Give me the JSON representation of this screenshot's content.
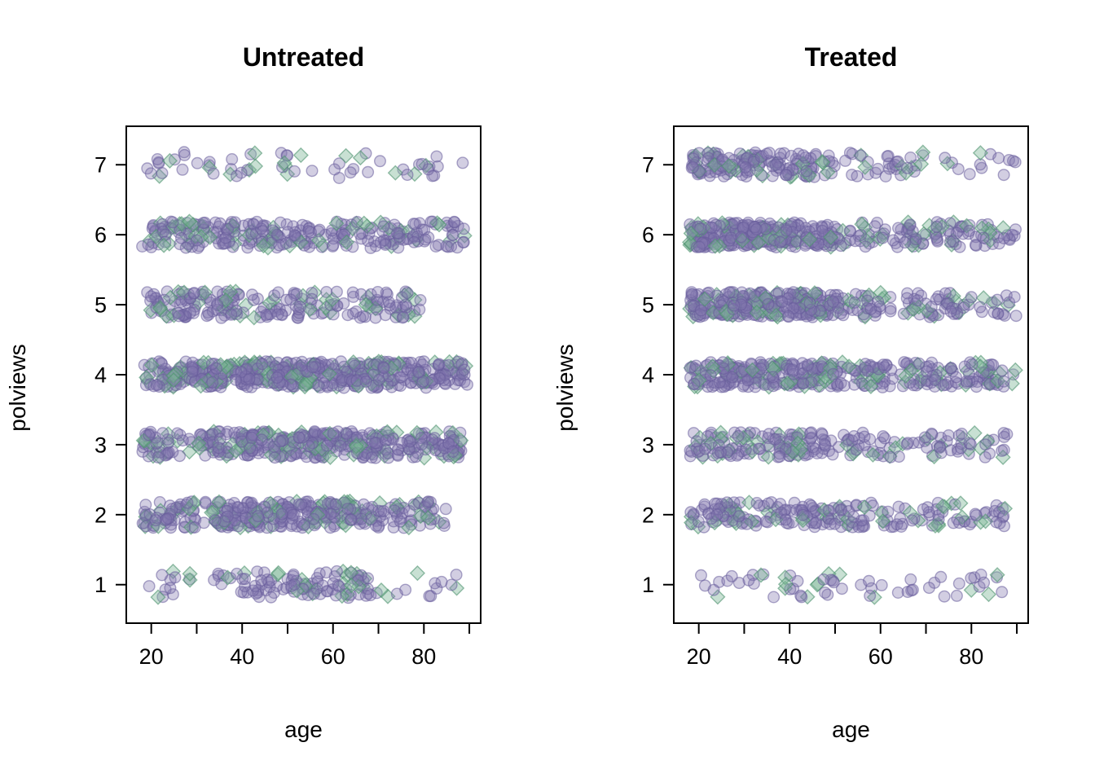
{
  "chart_data": [
    {
      "type": "scatter",
      "title": "Untreated",
      "xlabel": "age",
      "ylabel": "polviews",
      "xlim": [
        14.5,
        92.5
      ],
      "ylim": [
        0.45,
        7.55
      ],
      "x_ticks": [
        20,
        40,
        60,
        80
      ],
      "x_minor_ticks": [
        30,
        50,
        70,
        90
      ],
      "y_ticks": [
        1,
        2,
        3,
        4,
        5,
        6,
        7
      ],
      "grid": false,
      "legend": "none",
      "jitter": 0.19,
      "seed": 42,
      "series": [
        {
          "name": "circle-points",
          "marker": "circle",
          "fill": "#8177AF",
          "stroke": "#675C9C",
          "opacity": 0.36
        },
        {
          "name": "diamond-points",
          "marker": "diamond",
          "fill": "#7DB697",
          "stroke": "#4F936F",
          "opacity": 0.42
        }
      ],
      "levels": [
        {
          "y": 7,
          "counts": {
            "circle": 45,
            "diamond": 16
          },
          "clusters": [
            {
              "range": [
                18,
                89
              ],
              "w": 1.0
            }
          ]
        },
        {
          "y": 6,
          "counts": {
            "circle": 230,
            "diamond": 55
          },
          "clusters": [
            {
              "range": [
                18,
                89
              ],
              "w": 0.8
            },
            {
              "range": [
                20,
                55
              ],
              "w": 0.2
            }
          ]
        },
        {
          "y": 5,
          "counts": {
            "circle": 175,
            "diamond": 40
          },
          "clusters": [
            {
              "range": [
                18,
                80
              ],
              "w": 0.85
            },
            {
              "range": [
                20,
                50
              ],
              "w": 0.15
            }
          ]
        },
        {
          "y": 4,
          "counts": {
            "circle": 430,
            "diamond": 110
          },
          "clusters": [
            {
              "range": [
                18,
                90
              ],
              "w": 0.8
            },
            {
              "range": [
                30,
                75
              ],
              "w": 0.2
            }
          ]
        },
        {
          "y": 3,
          "counts": {
            "circle": 330,
            "diamond": 85
          },
          "clusters": [
            {
              "range": [
                18,
                89
              ],
              "w": 0.75
            },
            {
              "range": [
                40,
                70
              ],
              "w": 0.25
            }
          ]
        },
        {
          "y": 2,
          "counts": {
            "circle": 300,
            "diamond": 70
          },
          "clusters": [
            {
              "range": [
                18,
                85
              ],
              "w": 0.7
            },
            {
              "range": [
                35,
                65
              ],
              "w": 0.3
            }
          ]
        },
        {
          "y": 1,
          "counts": {
            "circle": 105,
            "diamond": 28
          },
          "clusters": [
            {
              "range": [
                18,
                89
              ],
              "w": 0.45
            },
            {
              "range": [
                40,
                68
              ],
              "w": 0.55
            }
          ]
        }
      ]
    },
    {
      "type": "scatter",
      "title": "Treated",
      "xlabel": "age",
      "ylabel": "polviews",
      "xlim": [
        14.5,
        92.5
      ],
      "ylim": [
        0.45,
        7.55
      ],
      "x_ticks": [
        20,
        40,
        60,
        80
      ],
      "x_minor_ticks": [
        30,
        50,
        70,
        90
      ],
      "y_ticks": [
        1,
        2,
        3,
        4,
        5,
        6,
        7
      ],
      "grid": false,
      "legend": "none",
      "jitter": 0.18,
      "seed": 1337,
      "series": [
        {
          "name": "circle-points",
          "marker": "circle",
          "fill": "#8177AF",
          "stroke": "#675C9C",
          "opacity": 0.36
        },
        {
          "name": "diamond-points",
          "marker": "diamond",
          "fill": "#7DB697",
          "stroke": "#4F936F",
          "opacity": 0.42
        }
      ],
      "levels": [
        {
          "y": 7,
          "counts": {
            "circle": 170,
            "diamond": 35
          },
          "clusters": [
            {
              "range": [
                18,
                50
              ],
              "w": 0.75
            },
            {
              "range": [
                50,
                90
              ],
              "w": 0.25
            }
          ]
        },
        {
          "y": 6,
          "counts": {
            "circle": 330,
            "diamond": 75
          },
          "clusters": [
            {
              "range": [
                18,
                50
              ],
              "w": 0.7
            },
            {
              "range": [
                50,
                90
              ],
              "w": 0.3
            }
          ]
        },
        {
          "y": 5,
          "counts": {
            "circle": 300,
            "diamond": 70
          },
          "clusters": [
            {
              "range": [
                18,
                50
              ],
              "w": 0.7
            },
            {
              "range": [
                50,
                90
              ],
              "w": 0.3
            }
          ]
        },
        {
          "y": 4,
          "counts": {
            "circle": 300,
            "diamond": 80
          },
          "clusters": [
            {
              "range": [
                18,
                50
              ],
              "w": 0.6
            },
            {
              "range": [
                50,
                90
              ],
              "w": 0.4
            }
          ]
        },
        {
          "y": 3,
          "counts": {
            "circle": 170,
            "diamond": 45
          },
          "clusters": [
            {
              "range": [
                18,
                50
              ],
              "w": 0.6
            },
            {
              "range": [
                50,
                90
              ],
              "w": 0.4
            }
          ]
        },
        {
          "y": 2,
          "counts": {
            "circle": 175,
            "diamond": 40
          },
          "clusters": [
            {
              "range": [
                18,
                50
              ],
              "w": 0.6
            },
            {
              "range": [
                50,
                88
              ],
              "w": 0.4
            }
          ]
        },
        {
          "y": 1,
          "counts": {
            "circle": 48,
            "diamond": 14
          },
          "clusters": [
            {
              "range": [
                18,
                50
              ],
              "w": 0.55
            },
            {
              "range": [
                50,
                88
              ],
              "w": 0.45
            }
          ]
        }
      ]
    }
  ]
}
